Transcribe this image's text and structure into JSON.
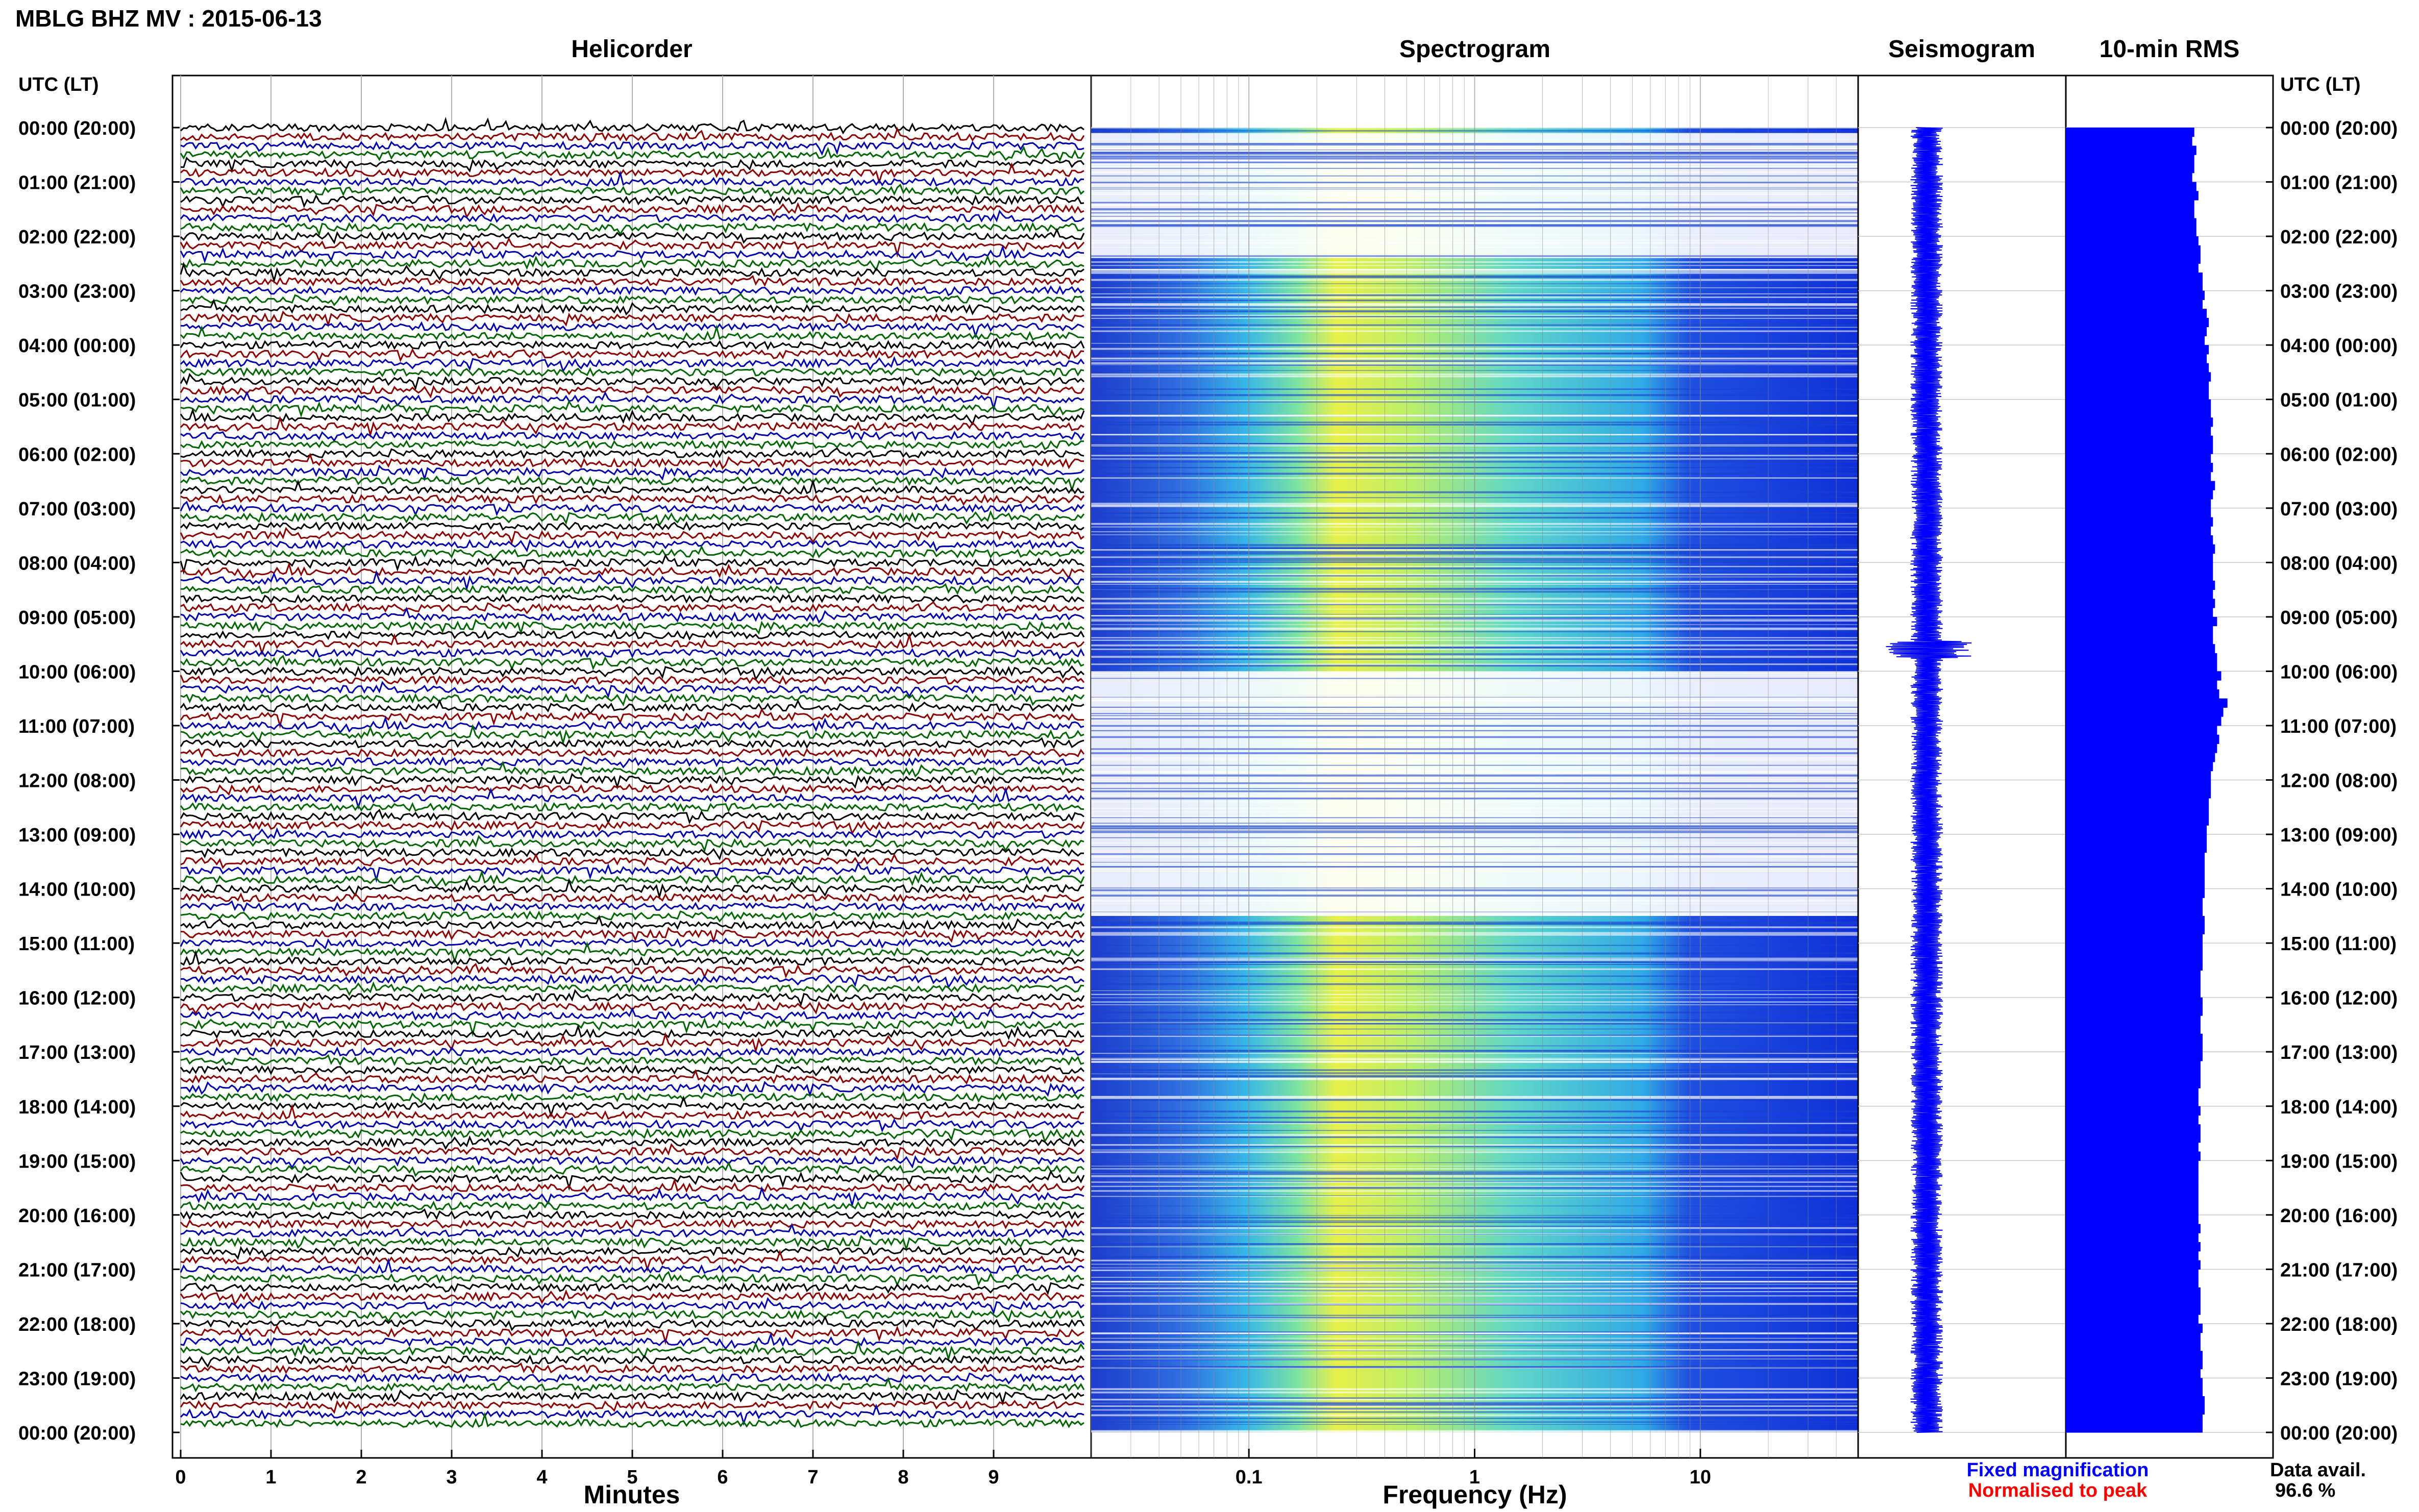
{
  "header": {
    "title": "MBLG BHZ MV : 2015-06-13"
  },
  "panels": {
    "helicorder": "Helicorder",
    "spectrogram": "Spectrogram",
    "seismogram": "Seismogram",
    "rms": "10-min RMS"
  },
  "time_axis": {
    "label_left": "UTC (LT)",
    "label_right": "UTC (LT)",
    "ticks": [
      "00:00 (20:00)",
      "01:00 (21:00)",
      "02:00 (22:00)",
      "03:00 (23:00)",
      "04:00 (00:00)",
      "05:00 (01:00)",
      "06:00 (02:00)",
      "07:00 (03:00)",
      "08:00 (04:00)",
      "09:00 (05:00)",
      "10:00 (06:00)",
      "11:00 (07:00)",
      "12:00 (08:00)",
      "13:00 (09:00)",
      "14:00 (10:00)",
      "15:00 (11:00)",
      "16:00 (12:00)",
      "17:00 (13:00)",
      "18:00 (14:00)",
      "19:00 (15:00)",
      "20:00 (16:00)",
      "21:00 (17:00)",
      "22:00 (18:00)",
      "23:00 (19:00)",
      "00:00 (20:00)"
    ]
  },
  "legend": {
    "fixed": "Fixed magnification",
    "normalised": "Normalised to peak",
    "fixed_color": "#0000ff",
    "normalised_color": "#ff0000"
  },
  "data_availability": {
    "label": "Data avail.",
    "value": "96.6 %"
  },
  "colors": {
    "trace_cycle": [
      "#000000",
      "#8b0000",
      "#0000aa",
      "#006400"
    ],
    "seismogram": "#0000ff",
    "rms": "#0000ff"
  },
  "chart_data": [
    {
      "type": "line",
      "name": "helicorder",
      "title": "Helicorder",
      "xlabel": "Minutes",
      "x_ticks": [
        0,
        1,
        2,
        3,
        4,
        5,
        6,
        7,
        8,
        9
      ],
      "xlim": [
        0,
        10
      ],
      "ylim_hours": [
        0,
        24
      ],
      "grid": true
    },
    {
      "type": "heatmap",
      "name": "spectrogram",
      "title": "Spectrogram",
      "xlabel": "Frequency (Hz)",
      "x_scale": "log",
      "xlim": [
        0.02,
        50
      ],
      "x_ticks": [
        0.1,
        1,
        10
      ],
      "colormap": "blue-cyan-yellow",
      "peak_band_hz": [
        0.2,
        0.4
      ],
      "gap_hours": [
        [
          0.1,
          2.4
        ],
        [
          10.0,
          14.5
        ]
      ],
      "grid": true
    },
    {
      "type": "line",
      "name": "seismogram",
      "title": "Seismogram",
      "ylim_hours": [
        0,
        24
      ],
      "notable_event_hour": 9.6
    },
    {
      "type": "bar",
      "name": "rms",
      "title": "10-min RMS",
      "bin_minutes": 10,
      "values_relative": [
        0.62,
        0.61,
        0.63,
        0.62,
        0.62,
        0.61,
        0.63,
        0.64,
        0.62,
        0.62,
        0.63,
        0.63,
        0.64,
        0.65,
        0.65,
        0.64,
        0.66,
        0.66,
        0.67,
        0.66,
        0.68,
        0.69,
        0.68,
        0.67,
        0.69,
        0.68,
        0.69,
        0.7,
        0.69,
        0.69,
        0.7,
        0.7,
        0.71,
        0.7,
        0.71,
        0.71,
        0.7,
        0.71,
        0.7,
        0.72,
        0.71,
        0.7,
        0.7,
        0.71,
        0.7,
        0.71,
        0.72,
        0.71,
        0.71,
        0.71,
        0.72,
        0.71,
        0.72,
        0.71,
        0.73,
        0.71,
        0.71,
        0.72,
        0.73,
        0.73,
        0.75,
        0.73,
        0.74,
        0.78,
        0.76,
        0.75,
        0.73,
        0.74,
        0.73,
        0.72,
        0.71,
        0.7,
        0.7,
        0.7,
        0.69,
        0.69,
        0.69,
        0.68,
        0.68,
        0.68,
        0.67,
        0.67,
        0.67,
        0.67,
        0.67,
        0.66,
        0.66,
        0.67,
        0.67,
        0.66,
        0.66,
        0.66,
        0.66,
        0.65,
        0.65,
        0.65,
        0.66,
        0.66,
        0.65,
        0.65,
        0.66,
        0.66,
        0.66,
        0.65,
        0.65,
        0.65,
        0.64,
        0.64,
        0.65,
        0.64,
        0.65,
        0.65,
        0.64,
        0.65,
        0.64,
        0.64,
        0.64,
        0.64,
        0.64,
        0.64,
        0.64,
        0.65,
        0.64,
        0.65,
        0.64,
        0.65,
        0.64,
        0.64,
        0.65,
        0.65,
        0.65,
        0.64,
        0.66,
        0.65,
        0.65,
        0.66,
        0.66,
        0.65,
        0.66,
        0.66,
        0.67,
        0.67,
        0.66,
        0.66
      ]
    }
  ]
}
